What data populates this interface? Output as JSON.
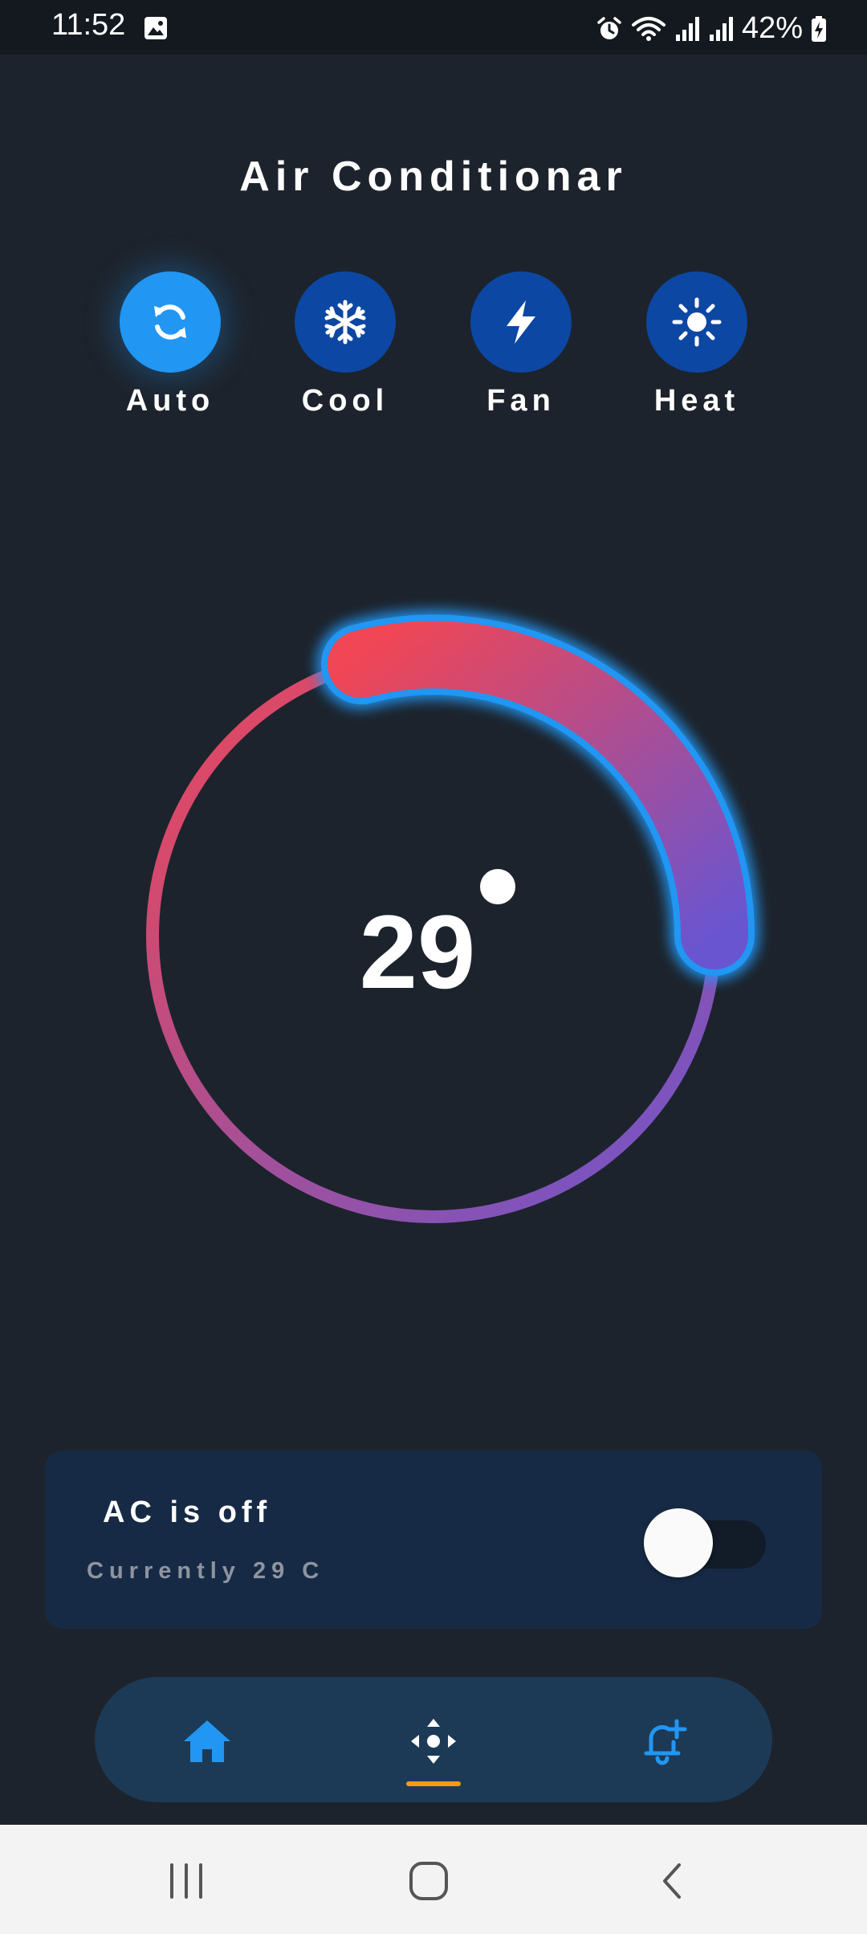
{
  "status_bar": {
    "time": "11:52",
    "battery": "42%"
  },
  "title": "Air Conditionar",
  "modes": [
    {
      "label": "Auto",
      "icon": "sync-icon",
      "active": true
    },
    {
      "label": "Cool",
      "icon": "snowflake-icon",
      "active": false
    },
    {
      "label": "Fan",
      "icon": "bolt-icon",
      "active": false
    },
    {
      "label": "Heat",
      "icon": "sun-icon",
      "active": false
    }
  ],
  "thermostat": {
    "temperature": "29",
    "arc_start_color": "#f04655",
    "arc_end_color": "#6a55d0",
    "glow_color": "#2196f3"
  },
  "ac_card": {
    "status": "AC is off",
    "current": "Currently 29 C",
    "power_on": false
  },
  "bottom_nav": {
    "items": [
      {
        "icon": "home-icon"
      },
      {
        "icon": "remote-control-icon",
        "selected": true
      },
      {
        "icon": "add-alarm-icon"
      }
    ]
  },
  "colors": {
    "background": "#1d232c",
    "accent": "#2196f3",
    "mode_inactive": "#0c47a3",
    "indicator": "#f39c12"
  }
}
